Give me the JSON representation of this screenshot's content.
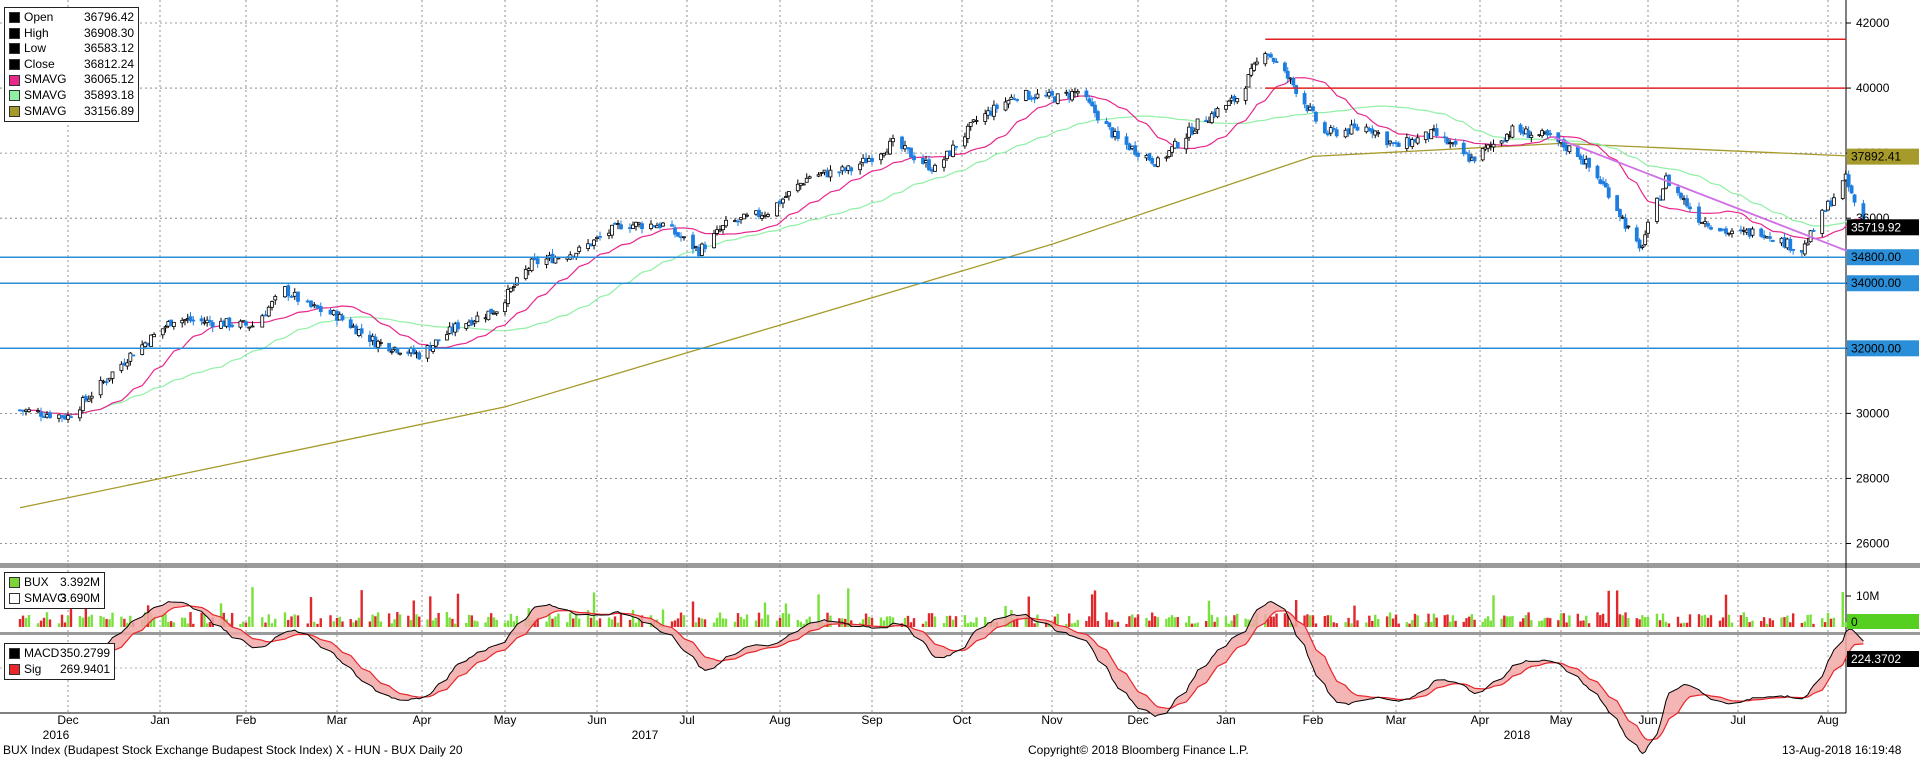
{
  "chart_data": [
    {
      "type": "candlestick",
      "panel": "price",
      "x_axis": {
        "months": [
          "Dec",
          "Jan",
          "Feb",
          "Mar",
          "Apr",
          "May",
          "Jun",
          "Jul",
          "Aug",
          "Sep",
          "Oct",
          "Nov",
          "Dec",
          "Jan",
          "Feb",
          "Mar",
          "Apr",
          "May",
          "Jun",
          "Jul",
          "Aug"
        ],
        "years": [
          "2016",
          "2017",
          "2018"
        ]
      },
      "y_axis": {
        "ticks": [
          26000,
          28000,
          30000,
          32000,
          34000,
          36000,
          38000,
          40000,
          42000
        ],
        "ylim": [
          25400,
          42400
        ],
        "side": "right"
      },
      "grid": true,
      "legend": {
        "placement": "top-left",
        "entries": [
          {
            "name": "Open",
            "value": "36796.42",
            "color": "#000000"
          },
          {
            "name": "High",
            "value": "36908.30",
            "color": "#000000"
          },
          {
            "name": "Low",
            "value": "36583.12",
            "color": "#000000"
          },
          {
            "name": "Close",
            "value": "36812.24",
            "color": "#000000"
          },
          {
            "name": "SMAVG",
            "value": "36065.12",
            "color": "#e8268c"
          },
          {
            "name": "SMAVG",
            "value": "35893.18",
            "color": "#8ff0a4"
          },
          {
            "name": "SMAVG",
            "value": "33156.89",
            "color": "#a69a2a"
          }
        ]
      },
      "price_path": [
        [
          "2016-11-15",
          30100
        ],
        [
          "2016-12-01",
          29900
        ],
        [
          "2016-12-09",
          30600
        ],
        [
          "2016-12-22",
          31800
        ],
        [
          "2017-01-06",
          32900
        ],
        [
          "2017-01-20",
          32800
        ],
        [
          "2017-02-03",
          32700
        ],
        [
          "2017-02-13",
          33800
        ],
        [
          "2017-02-20",
          33300
        ],
        [
          "2017-03-01",
          33000
        ],
        [
          "2017-03-15",
          32200
        ],
        [
          "2017-03-31",
          31800
        ],
        [
          "2017-04-14",
          32700
        ],
        [
          "2017-04-28",
          33200
        ],
        [
          "2017-05-10",
          34600
        ],
        [
          "2017-05-26",
          35000
        ],
        [
          "2017-06-09",
          35800
        ],
        [
          "2017-06-23",
          35800
        ],
        [
          "2017-07-05",
          35000
        ],
        [
          "2017-07-14",
          35800
        ],
        [
          "2017-07-28",
          36200
        ],
        [
          "2017-08-11",
          37300
        ],
        [
          "2017-08-25",
          37500
        ],
        [
          "2017-09-08",
          38300
        ],
        [
          "2017-09-22",
          37500
        ],
        [
          "2017-10-06",
          39000
        ],
        [
          "2017-10-20",
          39800
        ],
        [
          "2017-11-03",
          39700
        ],
        [
          "2017-11-10",
          39900
        ],
        [
          "2017-11-24",
          38400
        ],
        [
          "2017-12-08",
          37700
        ],
        [
          "2017-12-22",
          38900
        ],
        [
          "2018-01-05",
          39700
        ],
        [
          "2018-01-15",
          41200
        ],
        [
          "2018-01-25",
          40100
        ],
        [
          "2018-02-05",
          38600
        ],
        [
          "2018-02-20",
          38800
        ],
        [
          "2018-03-01",
          38200
        ],
        [
          "2018-03-15",
          38600
        ],
        [
          "2018-03-29",
          37800
        ],
        [
          "2018-04-13",
          38700
        ],
        [
          "2018-04-26",
          38500
        ],
        [
          "2018-05-07",
          38000
        ],
        [
          "2018-05-18",
          36800
        ],
        [
          "2018-05-29",
          35000
        ],
        [
          "2018-06-07",
          37200
        ],
        [
          "2018-06-18",
          36000
        ],
        [
          "2018-06-29",
          35500
        ],
        [
          "2018-07-09",
          35600
        ],
        [
          "2018-07-23",
          35000
        ],
        [
          "2018-08-01",
          36400
        ],
        [
          "2018-08-07",
          37200
        ],
        [
          "2018-08-13",
          35720
        ]
      ],
      "sma_200": [
        [
          "2016-11-15",
          27100
        ],
        [
          "2017-05-01",
          30200
        ],
        [
          "2017-11-01",
          35200
        ],
        [
          "2018-02-01",
          37900
        ],
        [
          "2018-05-01",
          38300
        ],
        [
          "2018-08-13",
          37892.41
        ]
      ],
      "horizontal_lines": [
        {
          "value": 41500,
          "color": "#e02020",
          "from": "2018-01-15"
        },
        {
          "value": 40000,
          "color": "#e02020",
          "from": "2018-01-15"
        },
        {
          "value": 34800,
          "color": "#2a8fd8",
          "label": "34800.00"
        },
        {
          "value": 34000,
          "color": "#2a8fd8",
          "label": "34000.00"
        },
        {
          "value": 32000,
          "color": "#2a8fd8",
          "label": "32000.00"
        }
      ],
      "trend_line": {
        "color": "#d070e8",
        "from": [
          "2018-04-28",
          38500
        ],
        "to": [
          "2018-08-13",
          34800
        ]
      },
      "value_tags": [
        {
          "label": "37892.41",
          "value": 37892.41,
          "color": "#a69a2a"
        },
        {
          "label": "35719.92",
          "value": 35719.92,
          "color": "#000000"
        }
      ]
    },
    {
      "type": "bar",
      "panel": "volume",
      "legend": {
        "entries": [
          {
            "name": "BUX",
            "value": "3.392M",
            "color": "#7cd43a"
          },
          {
            "name": "SMAVG",
            "value": "3.690M",
            "color": "#ffffff"
          }
        ]
      },
      "y_axis": {
        "ticks": [
          "10M"
        ],
        "value_tag": "0"
      },
      "colors": {
        "up": "#79e03c",
        "down": "#e0282c"
      }
    },
    {
      "type": "line",
      "panel": "macd",
      "legend": {
        "entries": [
          {
            "name": "MACD",
            "value": "350.2799",
            "color": "#000000"
          },
          {
            "name": "Sig",
            "value": "269.9401",
            "color": "#e8262c"
          }
        ]
      },
      "y_axis": {
        "value_tag": "224.3702"
      }
    }
  ],
  "footer": {
    "left": "BUX Index (Budapest Stock Exchange Budapest Stock Index) X - HUN - BUX  Daily 20",
    "center": "Copyright© 2018 Bloomberg Finance L.P.",
    "right": "13-Aug-2018 16:19:48"
  }
}
